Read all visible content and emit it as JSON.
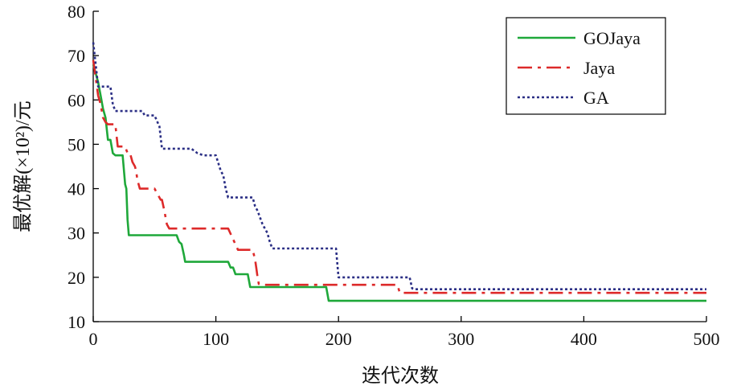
{
  "chart_data": {
    "type": "line",
    "xlabel": "迭代次数",
    "ylabel": "最优解(×10²)/元",
    "xlim": [
      0,
      500
    ],
    "ylim": [
      10,
      80
    ],
    "xticks": [
      0,
      100,
      200,
      300,
      400,
      500
    ],
    "yticks": [
      10,
      20,
      30,
      40,
      50,
      60,
      70,
      80
    ],
    "grid": false,
    "legend_position": "top-right",
    "series": [
      {
        "name": "GOJaya",
        "color": "#1fa83a",
        "dash": "solid",
        "x": [
          0,
          2,
          4,
          6,
          8,
          10,
          12,
          14,
          16,
          18,
          20,
          22,
          24,
          26,
          27,
          28,
          29,
          30,
          40,
          50,
          60,
          68,
          70,
          72,
          74,
          75,
          80,
          90,
          100,
          110,
          112,
          114,
          116,
          120,
          126,
          128,
          130,
          140,
          160,
          180,
          190,
          192,
          200,
          250,
          300,
          350,
          400,
          450,
          500
        ],
        "y": [
          68,
          66,
          64,
          61,
          58,
          56,
          51,
          51,
          48,
          47.5,
          47.5,
          47.5,
          47.5,
          41,
          40,
          33,
          29.5,
          29.5,
          29.5,
          29.5,
          29.5,
          29.5,
          28,
          27.5,
          25,
          23.5,
          23.5,
          23.5,
          23.5,
          23.5,
          22.2,
          22.2,
          20.7,
          20.7,
          20.7,
          17.8,
          17.8,
          17.8,
          17.8,
          17.8,
          17.8,
          14.7,
          14.7,
          14.7,
          14.7,
          14.7,
          14.7,
          14.7,
          14.7
        ]
      },
      {
        "name": "Jaya",
        "color": "#dd2a2a",
        "dash": "dashdot",
        "x": [
          0,
          2,
          4,
          6,
          8,
          10,
          12,
          16,
          18,
          20,
          24,
          26,
          28,
          30,
          32,
          34,
          35,
          36,
          38,
          40,
          50,
          55,
          56,
          58,
          60,
          62,
          80,
          100,
          110,
          115,
          118,
          120,
          125,
          130,
          132,
          133,
          134,
          135,
          137,
          140,
          160,
          200,
          240,
          248,
          250,
          260,
          300,
          400,
          500
        ],
        "y": [
          69,
          65,
          61,
          59,
          56,
          55,
          54.5,
          54.5,
          54.5,
          49.5,
          49.5,
          49.5,
          48,
          48,
          46,
          45,
          44,
          42,
          40,
          40,
          40,
          37.5,
          37.5,
          35,
          32,
          31,
          31,
          31,
          31,
          28,
          26.2,
          26.2,
          26.2,
          26.2,
          24,
          22,
          20,
          18.5,
          18.3,
          18.3,
          18.3,
          18.3,
          18.3,
          18.3,
          16.5,
          16.5,
          16.5,
          16.5,
          16.5
        ]
      },
      {
        "name": "GA",
        "color": "#2b2f85",
        "dash": "dotted",
        "x": [
          0,
          2,
          4,
          6,
          8,
          10,
          14,
          16,
          18,
          20,
          30,
          40,
          42,
          50,
          54,
          56,
          60,
          70,
          80,
          85,
          90,
          100,
          104,
          106,
          108,
          110,
          112,
          114,
          120,
          130,
          132,
          134,
          136,
          138,
          140,
          142,
          144,
          146,
          148,
          150,
          170,
          195,
          198,
          200,
          220,
          258,
          260,
          262,
          300,
          400,
          500
        ],
        "y": [
          73,
          68,
          63,
          63,
          63,
          63,
          63,
          59,
          57.5,
          57.5,
          57.5,
          57.5,
          56.5,
          56.5,
          54,
          49,
          49,
          49,
          49,
          48,
          47.5,
          47.5,
          44,
          43,
          40,
          38,
          38,
          38,
          38,
          38,
          36,
          35,
          33.5,
          32,
          31,
          30,
          28,
          26.5,
          26.5,
          26.5,
          26.5,
          26.5,
          26.5,
          20,
          20,
          20,
          17.5,
          17.3,
          17.3,
          17.3,
          17.3
        ]
      }
    ]
  }
}
